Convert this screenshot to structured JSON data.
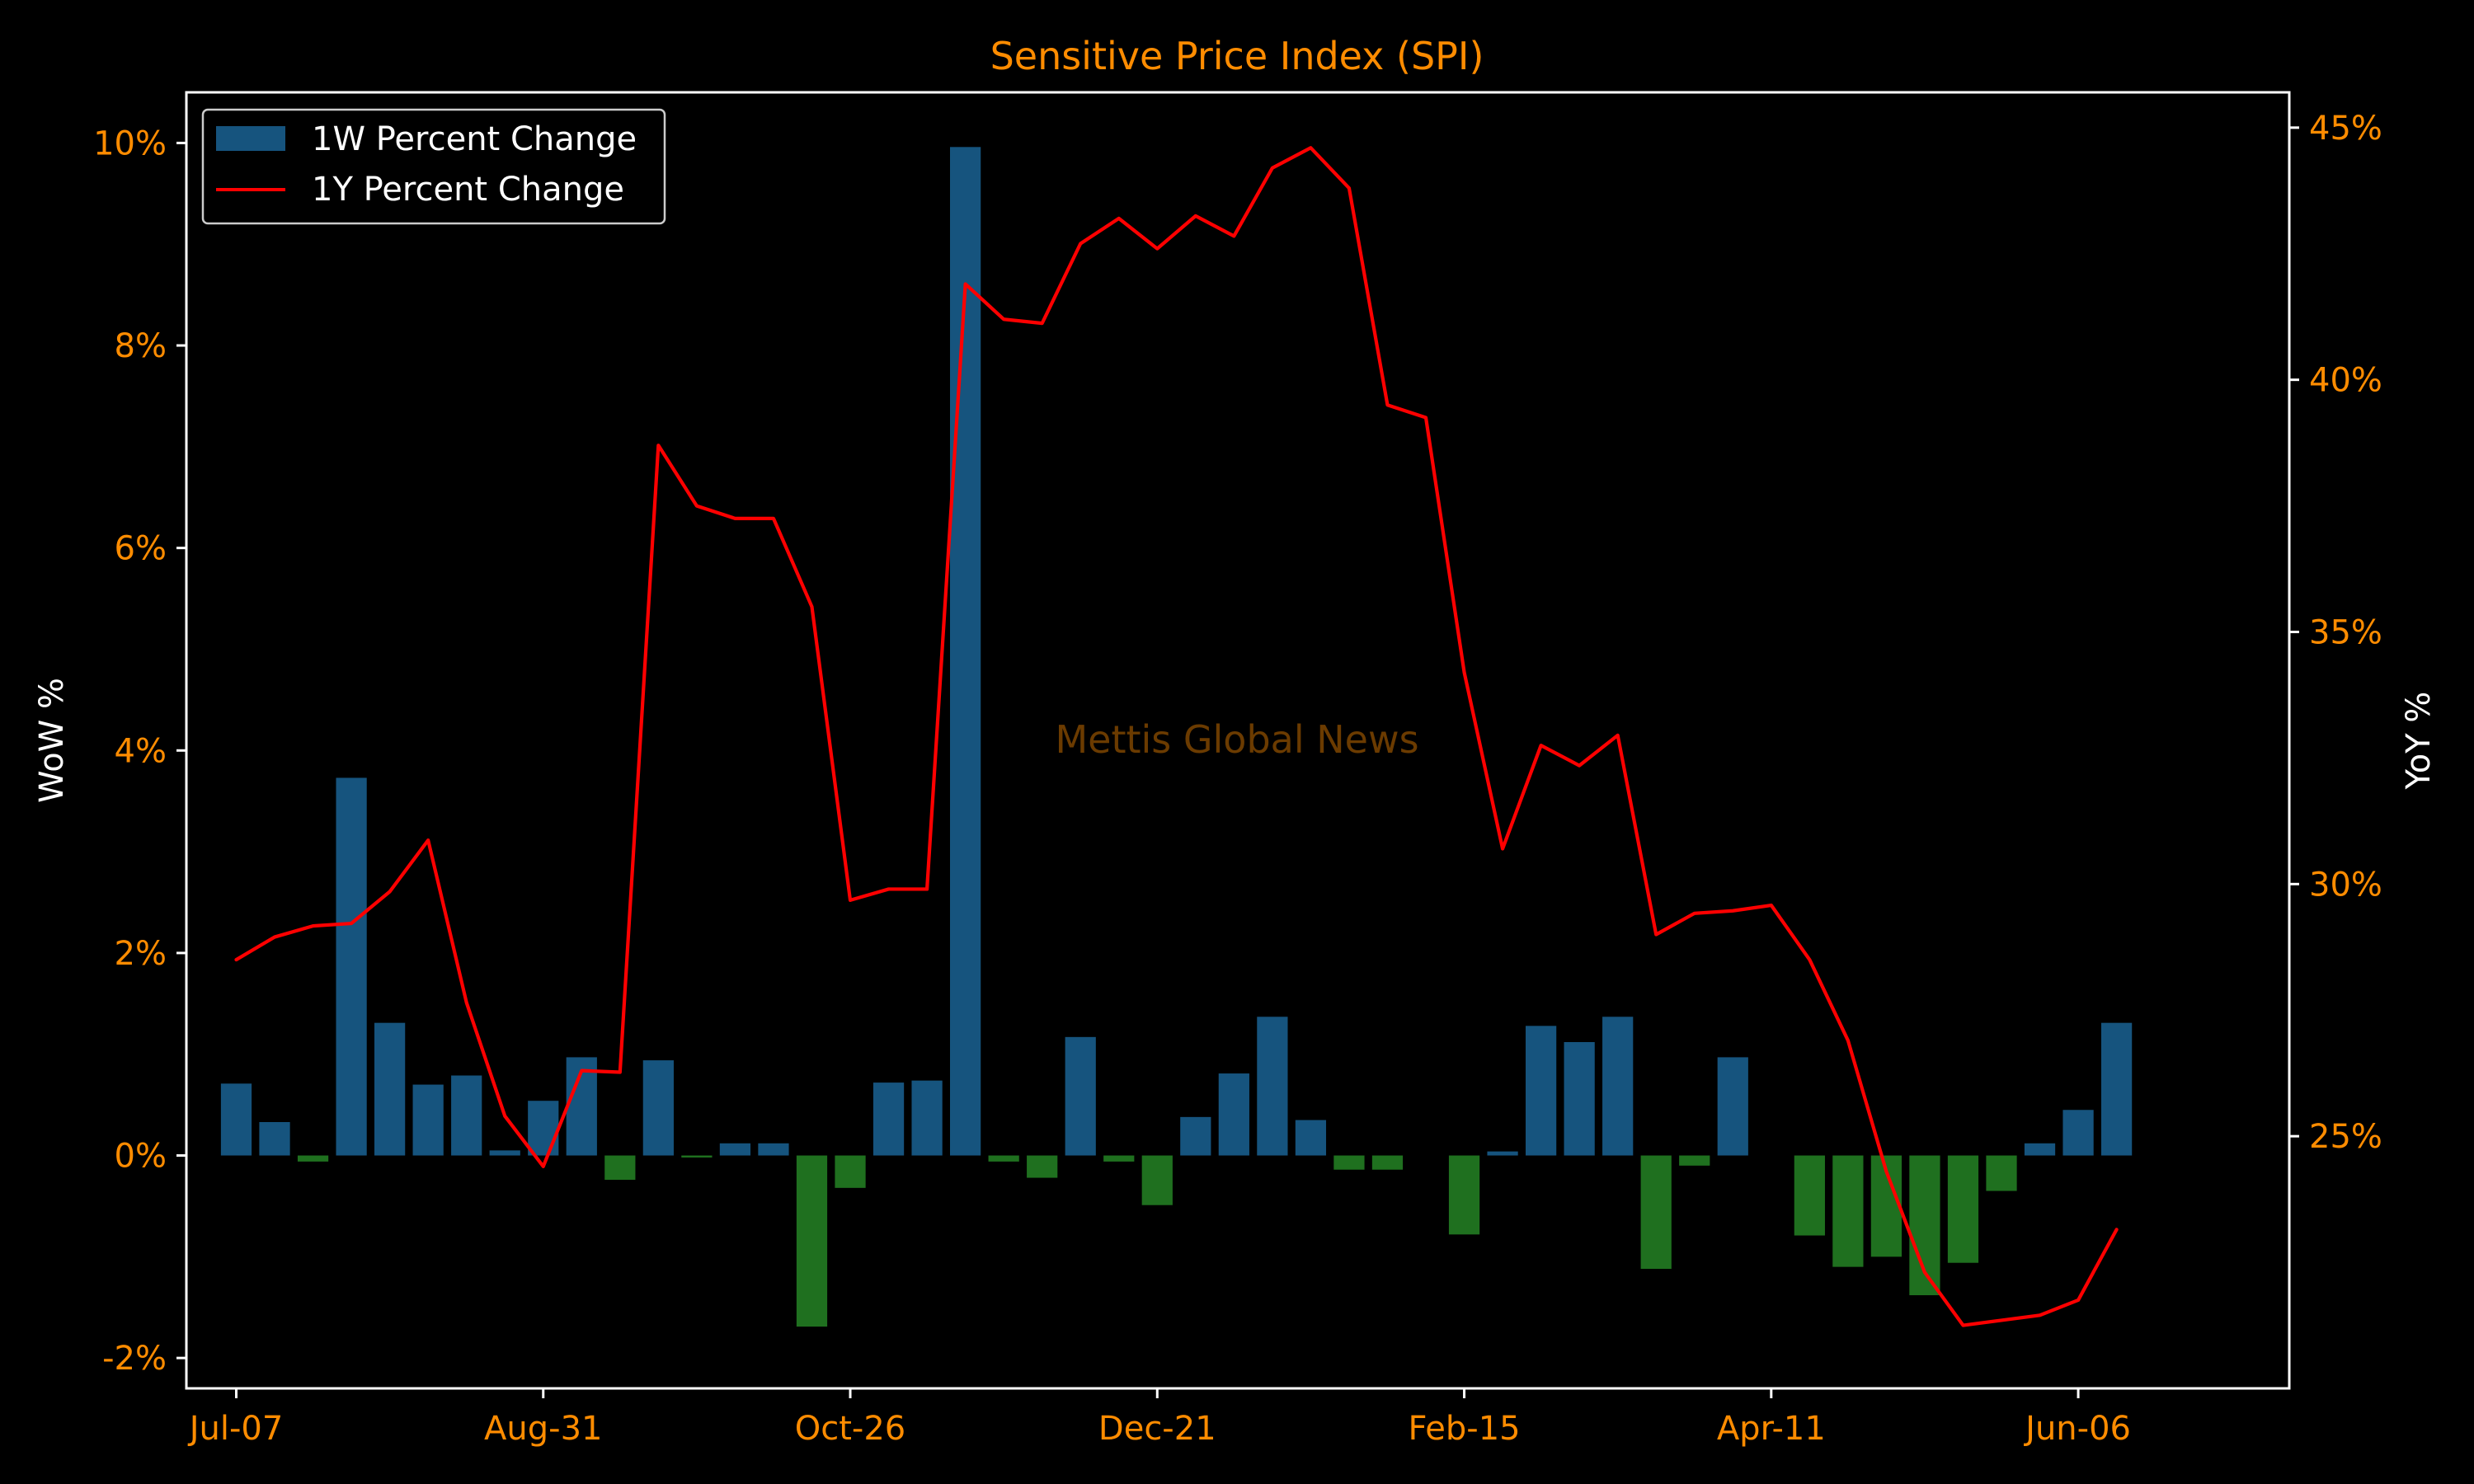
{
  "chart_data": {
    "type": "bar+line",
    "title": "Sensitive Price Index (SPI)",
    "watermark": "Mettis Global News",
    "ylabel_left": "WoW %",
    "ylabel_right": "YoY %",
    "xtick_labels": [
      "Jul-07",
      "Aug-31",
      "Oct-26",
      "Dec-21",
      "Feb-15",
      "Apr-11",
      "Jun-06"
    ],
    "xtick_positions": [
      0,
      8,
      16,
      24,
      32,
      40,
      48
    ],
    "y_left_ticks": [
      -2,
      0,
      2,
      4,
      6,
      8,
      10
    ],
    "y_left_tick_labels": [
      "-2%",
      "0%",
      "2%",
      "4%",
      "6%",
      "8%",
      "10%"
    ],
    "ylim_left": [
      -2.3,
      10.5
    ],
    "y_right_ticks": [
      25,
      30,
      35,
      40,
      45
    ],
    "y_right_tick_labels": [
      "25%",
      "30%",
      "35%",
      "40%",
      "45%"
    ],
    "ylim_right": [
      20.0,
      45.7
    ],
    "xlim": [
      -1.3,
      53.5
    ],
    "legend_position": "top-left",
    "colors": {
      "positive_bar": "#1f77b4",
      "negative_bar": "#2ca02c",
      "line": "#ff0000",
      "tick": "#ff8c00",
      "axis_frame": "#ffffff",
      "background": "#000000"
    },
    "series": [
      {
        "name": "1W Percent Change",
        "type": "bar",
        "values": [
          0.71,
          0.33,
          -0.06,
          3.73,
          1.31,
          0.7,
          0.79,
          0.05,
          0.54,
          0.97,
          -0.24,
          0.94,
          -0.02,
          0.12,
          0.12,
          -1.69,
          -0.32,
          0.72,
          0.74,
          9.96,
          -0.06,
          -0.22,
          1.17,
          -0.06,
          -0.49,
          0.38,
          0.81,
          1.37,
          0.35,
          -0.14,
          -0.14,
          null,
          -0.78,
          0.04,
          1.28,
          1.12,
          1.37,
          -1.12,
          -0.1,
          0.97,
          null,
          -0.79,
          -1.1,
          -1.0,
          -1.38,
          -1.06,
          -0.35,
          0.12,
          0.45,
          1.31
        ]
      },
      {
        "name": "1Y Percent Change",
        "type": "line",
        "values": [
          28.5,
          28.95,
          29.17,
          29.22,
          29.85,
          30.87,
          27.65,
          25.4,
          24.4,
          26.3,
          26.27,
          38.7,
          37.5,
          37.25,
          37.25,
          35.5,
          29.68,
          29.9,
          29.9,
          41.9,
          41.2,
          41.12,
          42.7,
          43.2,
          42.6,
          43.25,
          42.85,
          44.2,
          44.6,
          43.8,
          39.5,
          39.25,
          34.2,
          30.7,
          32.75,
          32.35,
          32.95,
          29.0,
          29.42,
          29.47,
          29.58,
          28.5,
          26.9,
          24.3,
          22.3,
          21.25,
          21.35,
          21.45,
          21.75,
          23.15
        ]
      }
    ]
  }
}
